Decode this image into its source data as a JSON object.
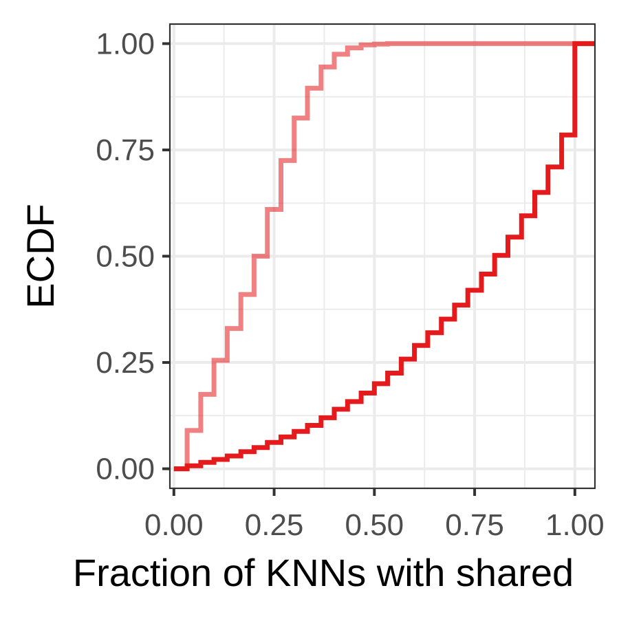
{
  "chart_data": {
    "type": "line",
    "step": true,
    "xlabel": "Fraction of KNNs with shared",
    "ylabel": "ECDF",
    "xlim": [
      -0.01,
      1.05
    ],
    "ylim": [
      -0.046,
      1.046
    ],
    "x_ticks": [
      0.0,
      0.25,
      0.5,
      0.75,
      1.0
    ],
    "x_tick_labels": [
      "0.00",
      "0.25",
      "0.50",
      "0.75",
      "1.00"
    ],
    "y_ticks": [
      0.0,
      0.25,
      0.5,
      0.75,
      1.0
    ],
    "y_tick_labels": [
      "0.00",
      "0.25",
      "0.50",
      "0.75",
      "1.00"
    ],
    "grid": true,
    "legend": "none",
    "series": [
      {
        "color": "#e41a1c",
        "opacity": 0.55,
        "x": [
          0.0,
          0.033,
          0.067,
          0.1,
          0.133,
          0.167,
          0.2,
          0.233,
          0.267,
          0.3,
          0.333,
          0.367,
          0.4,
          0.433,
          0.467,
          0.5,
          0.533,
          1.05
        ],
        "y": [
          0.0,
          0.09,
          0.175,
          0.255,
          0.33,
          0.41,
          0.5,
          0.61,
          0.725,
          0.825,
          0.895,
          0.945,
          0.975,
          0.99,
          0.997,
          0.999,
          1.0,
          1.0
        ]
      },
      {
        "color": "#e41a1c",
        "opacity": 1.0,
        "x": [
          0.0,
          0.033,
          0.067,
          0.1,
          0.133,
          0.167,
          0.2,
          0.233,
          0.267,
          0.3,
          0.333,
          0.367,
          0.4,
          0.433,
          0.467,
          0.5,
          0.533,
          0.567,
          0.6,
          0.633,
          0.667,
          0.7,
          0.733,
          0.767,
          0.8,
          0.833,
          0.867,
          0.9,
          0.933,
          0.967,
          1.0,
          1.05
        ],
        "y": [
          0.0,
          0.007,
          0.015,
          0.022,
          0.03,
          0.04,
          0.05,
          0.062,
          0.075,
          0.088,
          0.102,
          0.12,
          0.14,
          0.158,
          0.178,
          0.2,
          0.225,
          0.258,
          0.29,
          0.32,
          0.352,
          0.385,
          0.42,
          0.458,
          0.502,
          0.545,
          0.595,
          0.65,
          0.71,
          0.785,
          1.0,
          1.0
        ]
      }
    ]
  }
}
